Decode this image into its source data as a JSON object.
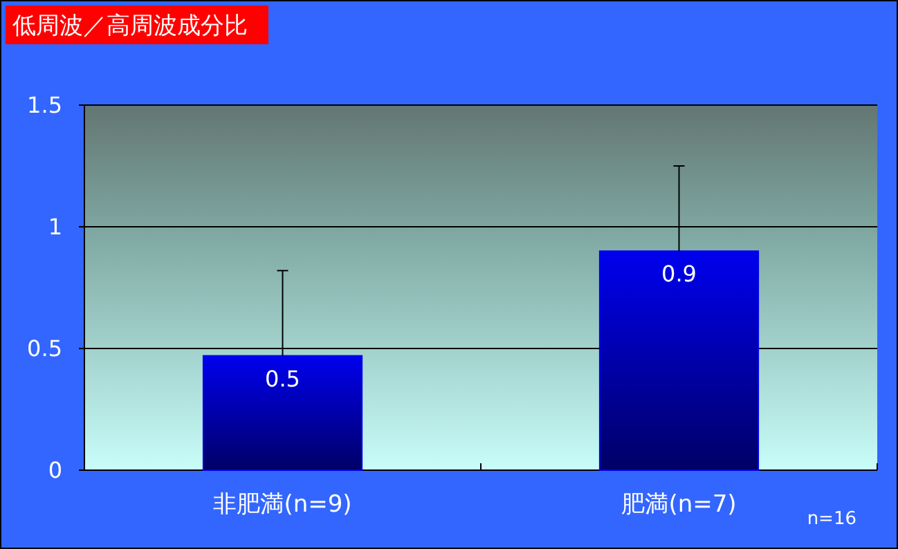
{
  "chart_data": {
    "type": "bar",
    "title": "低周波／高周波成分比",
    "categories": [
      "非肥満(n=9)",
      "肥満(n=7)"
    ],
    "values": [
      0.47,
      0.9
    ],
    "errors": [
      0.35,
      0.35
    ],
    "value_labels": [
      "0.5",
      "0.9"
    ],
    "color": "#0000ee",
    "ylim": [
      0,
      1.5
    ],
    "yticks": [
      0,
      0.5,
      1,
      1.5
    ],
    "grid": "y",
    "annotations": [
      "n=16"
    ]
  }
}
